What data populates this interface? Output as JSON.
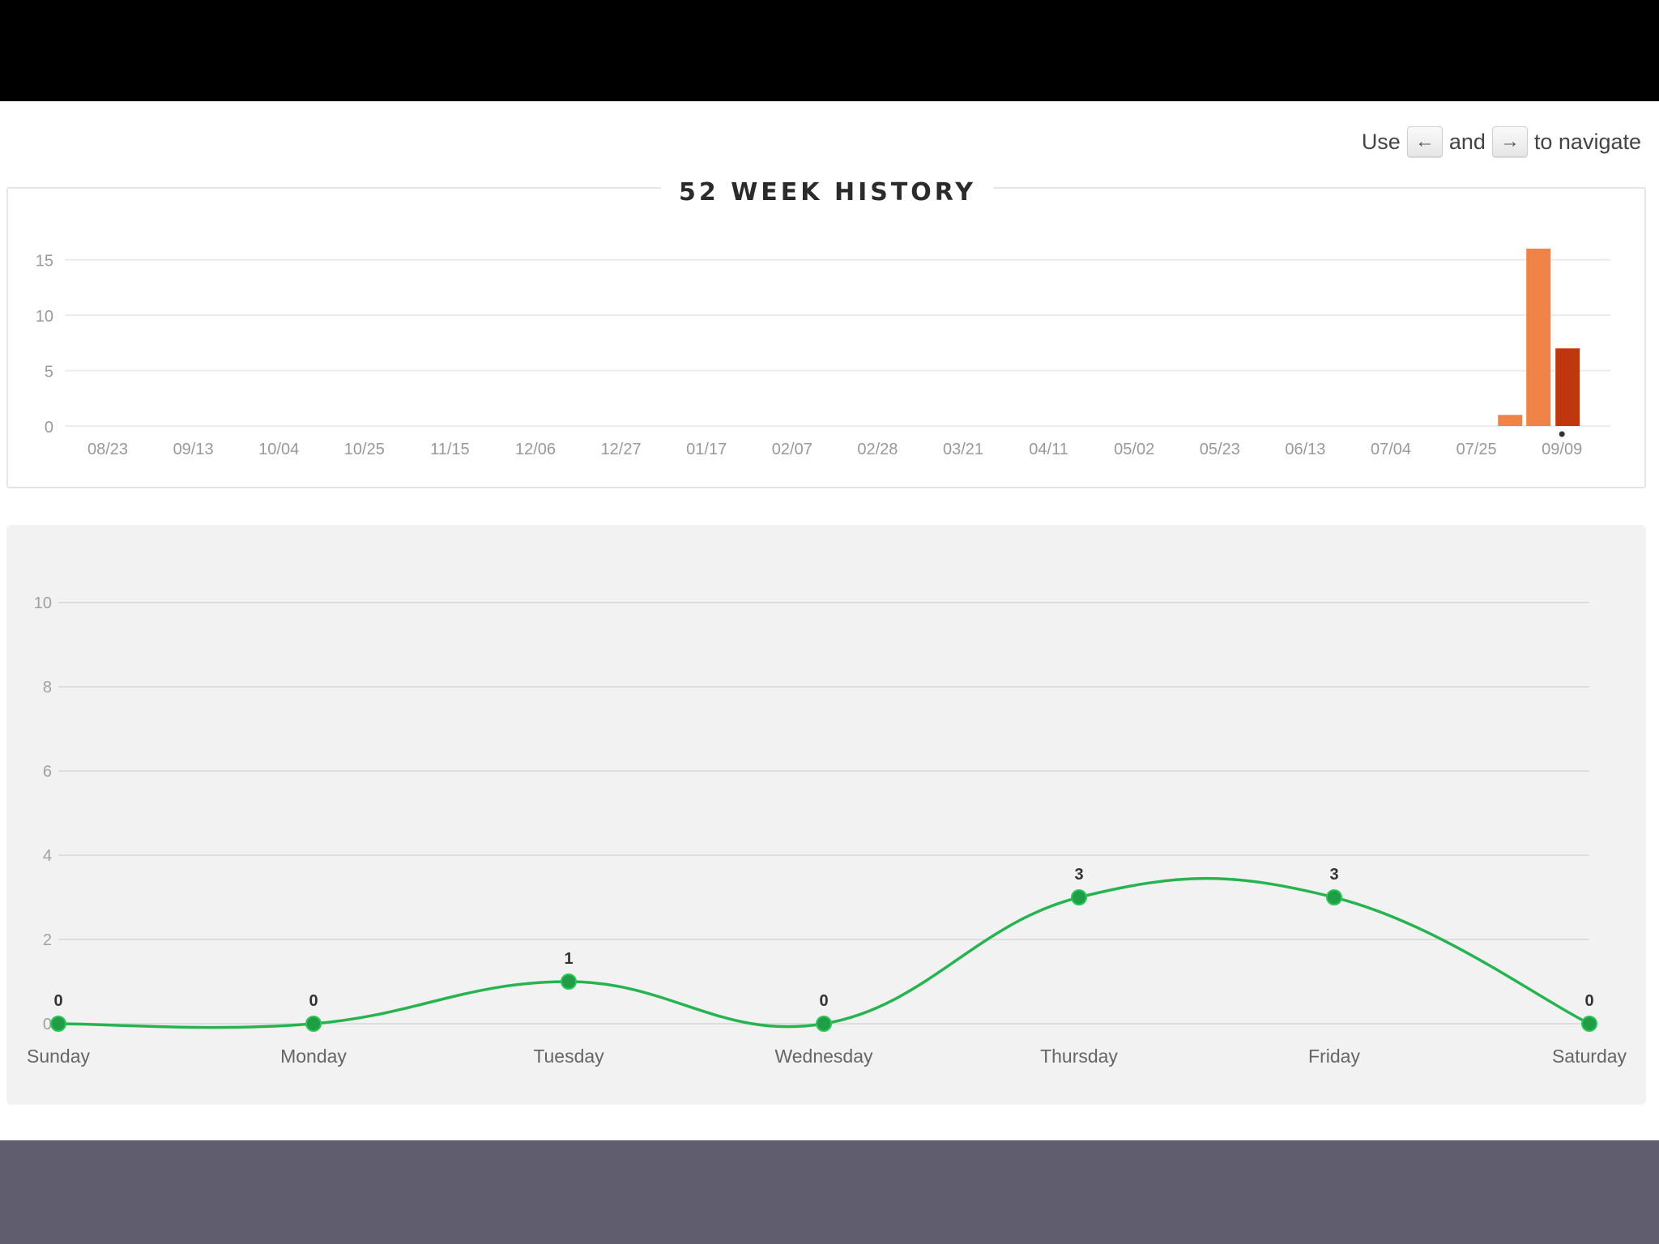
{
  "navigation_hint": {
    "prefix": "Use",
    "left_key": "←",
    "middle": "and",
    "right_key": "→",
    "suffix": "to navigate"
  },
  "chart_data": [
    {
      "type": "bar",
      "title": "52 WEEK HISTORY",
      "categories": [
        "08/23",
        "09/13",
        "10/04",
        "10/25",
        "11/15",
        "12/06",
        "12/27",
        "01/17",
        "02/07",
        "02/28",
        "03/21",
        "04/11",
        "05/02",
        "05/23",
        "06/13",
        "07/04",
        "07/25",
        "09/09"
      ],
      "yticks": [
        0,
        5,
        10,
        15
      ],
      "ylim": [
        0,
        16
      ],
      "grid": true,
      "bars": [
        {
          "value": 1,
          "color": "#f08347"
        },
        {
          "value": 16,
          "color": "#f08347"
        },
        {
          "value": 7,
          "color": "#c0360f"
        }
      ],
      "colors": {
        "bar": "#f08347",
        "current_bar": "#c0360f"
      }
    },
    {
      "type": "line",
      "categories": [
        "Sunday",
        "Monday",
        "Tuesday",
        "Wednesday",
        "Thursday",
        "Friday",
        "Saturday"
      ],
      "values": [
        0,
        0,
        1,
        0,
        3,
        3,
        0
      ],
      "yticks": [
        0,
        2,
        4,
        6,
        8,
        10
      ],
      "ylim": [
        0,
        10
      ],
      "grid": true,
      "colors": {
        "line": "#27b350",
        "point": "#1f9e45"
      }
    }
  ]
}
